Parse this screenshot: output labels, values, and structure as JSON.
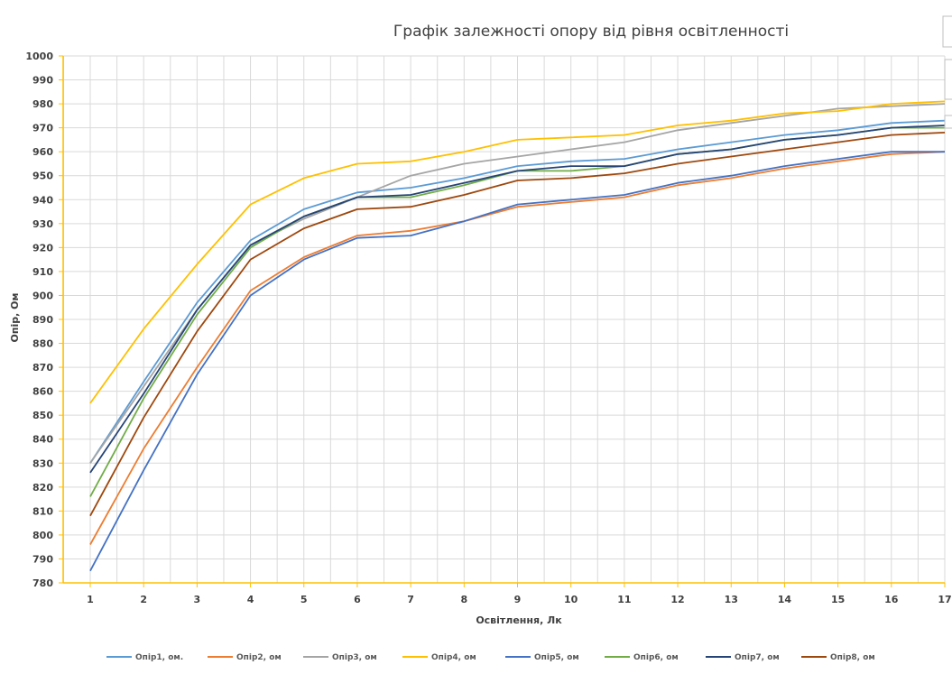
{
  "chart_data": {
    "type": "line",
    "title": "Графік залежності опору від рівня освітленності",
    "xlabel": "Освітлення, Лк",
    "ylabel": "Опір, Ом",
    "categories": [
      "1",
      "2",
      "3",
      "4",
      "5",
      "6",
      "7",
      "8",
      "9",
      "10",
      "11",
      "12",
      "13",
      "14",
      "15",
      "16",
      "17"
    ],
    "ylim": [
      780,
      1000
    ],
    "ytick_step": 10,
    "grid": true,
    "legend_position": "bottom",
    "series": [
      {
        "name": "Опір1, ом.",
        "color": "#5b9bd5",
        "values": [
          830,
          864,
          897,
          923,
          936,
          943,
          945,
          949,
          954,
          956,
          957,
          961,
          964,
          967,
          969,
          972,
          973
        ]
      },
      {
        "name": "Опір2, ом",
        "color": "#ed7d31",
        "values": [
          796,
          836,
          870,
          902,
          916,
          925,
          927,
          931,
          937,
          939,
          941,
          946,
          949,
          953,
          956,
          959,
          960
        ]
      },
      {
        "name": "Опір3, ом",
        "color": "#a5a5a5",
        "values": [
          830,
          862,
          894,
          921,
          932,
          941,
          950,
          955,
          958,
          961,
          964,
          969,
          972,
          975,
          978,
          979,
          980
        ]
      },
      {
        "name": "Опір4, ом",
        "color": "#ffc000",
        "values": [
          855,
          886,
          913,
          938,
          949,
          955,
          956,
          960,
          965,
          966,
          967,
          971,
          973,
          976,
          977,
          980,
          981
        ]
      },
      {
        "name": "Опір5, ом",
        "color": "#4472c4",
        "values": [
          785,
          827,
          867,
          900,
          915,
          924,
          925,
          931,
          938,
          940,
          942,
          947,
          950,
          954,
          957,
          960,
          960
        ]
      },
      {
        "name": "Опір6, ом",
        "color": "#70ad47",
        "values": [
          816,
          857,
          892,
          920,
          933,
          941,
          941,
          946,
          952,
          952,
          954,
          959,
          961,
          965,
          967,
          970,
          970
        ]
      },
      {
        "name": "Опір7, ом",
        "color": "#264478",
        "values": [
          826,
          859,
          894,
          921,
          933,
          941,
          942,
          947,
          952,
          954,
          954,
          959,
          961,
          965,
          967,
          970,
          971
        ]
      },
      {
        "name": "Опір8, ом",
        "color": "#9e480e",
        "values": [
          808,
          849,
          885,
          915,
          928,
          936,
          937,
          942,
          948,
          949,
          951,
          955,
          958,
          961,
          964,
          967,
          968
        ]
      }
    ]
  }
}
